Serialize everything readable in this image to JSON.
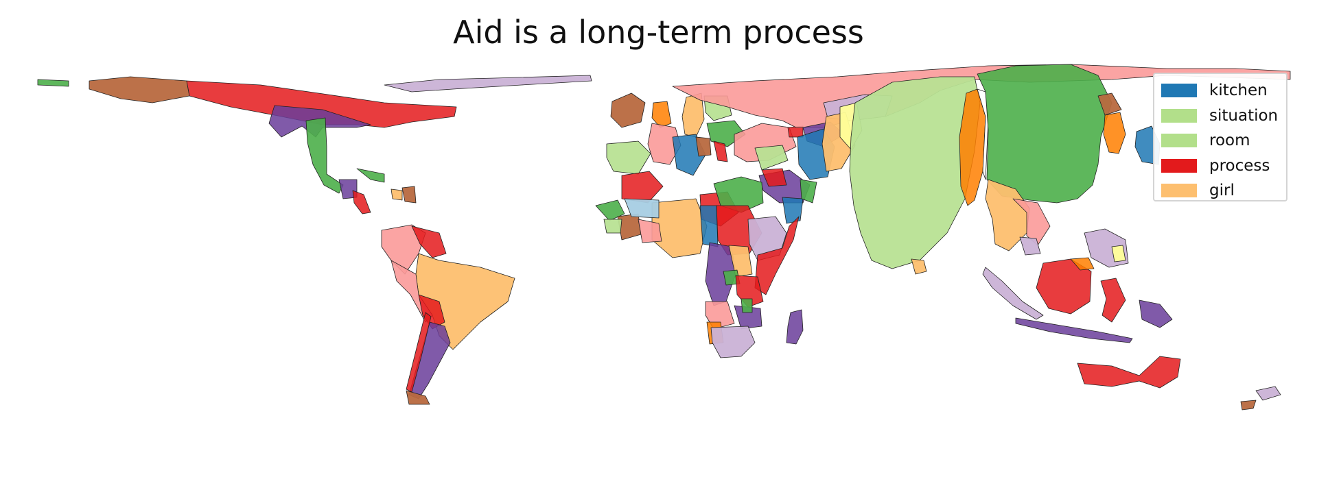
{
  "title": "Aid is a long-term process",
  "legend": {
    "placement": "top-right",
    "items": [
      {
        "label": "kitchen",
        "color": "#1f78b4"
      },
      {
        "label": "situation",
        "color": "#b2df8a"
      },
      {
        "label": "room",
        "color": "#b2df8a"
      },
      {
        "label": "process",
        "color": "#e31a1c"
      },
      {
        "label": "girl",
        "color": "#fdbf6f"
      }
    ]
  },
  "palette": {
    "dark_green": "#4daf4a",
    "light_green": "#b8e294",
    "red": "#e41a1c",
    "pink": "#fb9a99",
    "orange": "#ff7f00",
    "light_orange": "#fdbf6f",
    "purple": "#6a3d9a",
    "lavender": "#cab2d6",
    "blue": "#1f78b4",
    "light_blue": "#a6cee3",
    "brown": "#b15928",
    "yellow": "#ffff99"
  }
}
